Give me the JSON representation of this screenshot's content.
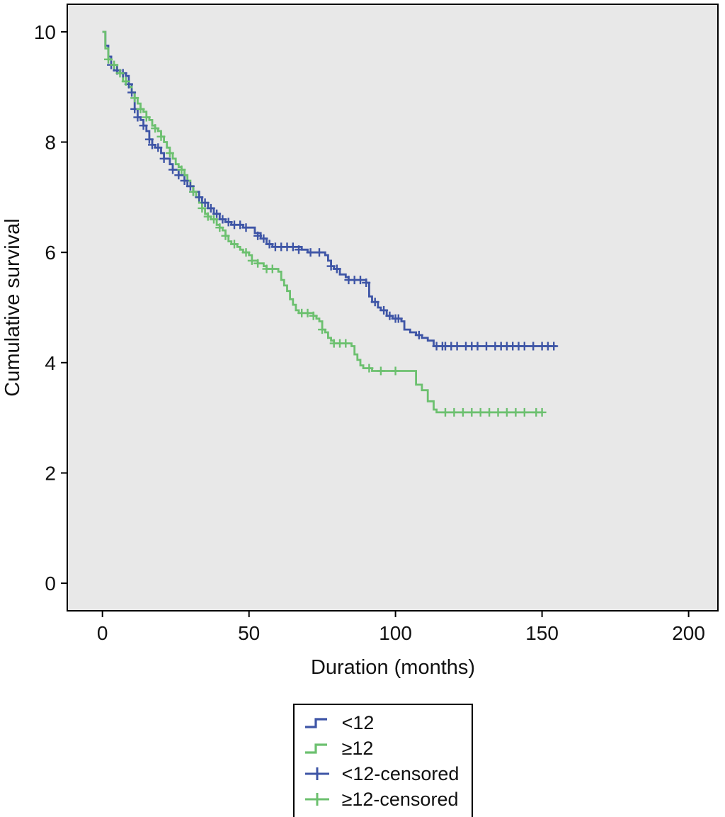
{
  "figure": {
    "background": "#ffffff",
    "plot_background": "#e8e8e8",
    "frame_color": "#000000",
    "text_color": "#111111"
  },
  "chart_data": {
    "type": "line",
    "subtype": "kaplan-meier-step-survival",
    "title": "",
    "xlabel": "Duration (months)",
    "ylabel": "Cumulative survival",
    "xlim": [
      -12,
      210
    ],
    "ylim": [
      -0.5,
      10.5
    ],
    "xticks": [
      0,
      50,
      100,
      150,
      200
    ],
    "yticks": [
      0,
      2,
      4,
      6,
      8,
      10
    ],
    "grid": false,
    "legend_position": "bottom-center",
    "series": [
      {
        "name": "<12",
        "color": "#3e55a6",
        "step": true,
        "points": [
          [
            0,
            10
          ],
          [
            1,
            9.75
          ],
          [
            2,
            9.55
          ],
          [
            3,
            9.4
          ],
          [
            4,
            9.3
          ],
          [
            6,
            9.25
          ],
          [
            8,
            9.2
          ],
          [
            9,
            9.05
          ],
          [
            10,
            8.9
          ],
          [
            11,
            8.6
          ],
          [
            12,
            8.45
          ],
          [
            13,
            8.4
          ],
          [
            14,
            8.3
          ],
          [
            15,
            8.2
          ],
          [
            16,
            8.05
          ],
          [
            17,
            7.95
          ],
          [
            18,
            7.9
          ],
          [
            20,
            7.8
          ],
          [
            21,
            7.7
          ],
          [
            23,
            7.6
          ],
          [
            24,
            7.5
          ],
          [
            26,
            7.4
          ],
          [
            28,
            7.3
          ],
          [
            29,
            7.2
          ],
          [
            31,
            7.1
          ],
          [
            33,
            7.0
          ],
          [
            34,
            6.9
          ],
          [
            36,
            6.8
          ],
          [
            38,
            6.7
          ],
          [
            40,
            6.6
          ],
          [
            42,
            6.55
          ],
          [
            44,
            6.5
          ],
          [
            48,
            6.45
          ],
          [
            52,
            6.35
          ],
          [
            54,
            6.25
          ],
          [
            56,
            6.15
          ],
          [
            58,
            6.1
          ],
          [
            66,
            6.1
          ],
          [
            68,
            6.05
          ],
          [
            70,
            6.0
          ],
          [
            76,
            5.95
          ],
          [
            77,
            5.85
          ],
          [
            78,
            5.75
          ],
          [
            79,
            5.7
          ],
          [
            81,
            5.6
          ],
          [
            83,
            5.55
          ],
          [
            84,
            5.5
          ],
          [
            90,
            5.45
          ],
          [
            91,
            5.2
          ],
          [
            92,
            5.1
          ],
          [
            94,
            5.0
          ],
          [
            95,
            4.95
          ],
          [
            97,
            4.85
          ],
          [
            99,
            4.8
          ],
          [
            102,
            4.75
          ],
          [
            103,
            4.6
          ],
          [
            105,
            4.55
          ],
          [
            107,
            4.5
          ],
          [
            109,
            4.45
          ],
          [
            111,
            4.4
          ],
          [
            113,
            4.3
          ],
          [
            155,
            4.3
          ]
        ],
        "censored": [
          [
            3,
            9.4
          ],
          [
            5,
            9.3
          ],
          [
            7,
            9.25
          ],
          [
            9,
            9.05
          ],
          [
            10,
            8.9
          ],
          [
            11,
            8.6
          ],
          [
            12,
            8.45
          ],
          [
            14,
            8.3
          ],
          [
            16,
            8.05
          ],
          [
            17,
            7.95
          ],
          [
            19,
            7.9
          ],
          [
            21,
            7.7
          ],
          [
            24,
            7.5
          ],
          [
            26,
            7.4
          ],
          [
            28,
            7.3
          ],
          [
            30,
            7.2
          ],
          [
            31,
            7.1
          ],
          [
            33,
            7.0
          ],
          [
            35,
            6.9
          ],
          [
            37,
            6.8
          ],
          [
            39,
            6.7
          ],
          [
            41,
            6.6
          ],
          [
            43,
            6.55
          ],
          [
            45,
            6.5
          ],
          [
            47,
            6.5
          ],
          [
            49,
            6.45
          ],
          [
            53,
            6.3
          ],
          [
            55,
            6.25
          ],
          [
            57,
            6.15
          ],
          [
            59,
            6.1
          ],
          [
            61,
            6.1
          ],
          [
            63,
            6.1
          ],
          [
            65,
            6.1
          ],
          [
            67,
            6.05
          ],
          [
            71,
            6.0
          ],
          [
            74,
            6.0
          ],
          [
            78,
            5.75
          ],
          [
            80,
            5.7
          ],
          [
            84,
            5.5
          ],
          [
            86,
            5.5
          ],
          [
            88,
            5.5
          ],
          [
            90,
            5.45
          ],
          [
            93,
            5.1
          ],
          [
            96,
            4.95
          ],
          [
            98,
            4.85
          ],
          [
            100,
            4.8
          ],
          [
            101,
            4.8
          ],
          [
            108,
            4.5
          ],
          [
            114,
            4.3
          ],
          [
            116,
            4.3
          ],
          [
            117,
            4.3
          ],
          [
            119,
            4.3
          ],
          [
            121,
            4.3
          ],
          [
            124,
            4.3
          ],
          [
            126,
            4.3
          ],
          [
            128,
            4.3
          ],
          [
            131,
            4.3
          ],
          [
            134,
            4.3
          ],
          [
            136,
            4.3
          ],
          [
            138,
            4.3
          ],
          [
            140,
            4.3
          ],
          [
            142,
            4.3
          ],
          [
            144,
            4.3
          ],
          [
            147,
            4.3
          ],
          [
            150,
            4.3
          ],
          [
            152,
            4.3
          ],
          [
            154,
            4.3
          ]
        ]
      },
      {
        "name": "≥12",
        "color": "#6cc06f",
        "step": true,
        "points": [
          [
            0,
            10
          ],
          [
            1,
            9.7
          ],
          [
            2,
            9.5
          ],
          [
            3,
            9.4
          ],
          [
            5,
            9.25
          ],
          [
            7,
            9.1
          ],
          [
            9,
            9.0
          ],
          [
            10,
            8.9
          ],
          [
            11,
            8.8
          ],
          [
            12,
            8.7
          ],
          [
            13,
            8.6
          ],
          [
            14,
            8.55
          ],
          [
            15,
            8.45
          ],
          [
            16,
            8.4
          ],
          [
            17,
            8.3
          ],
          [
            18,
            8.25
          ],
          [
            19,
            8.2
          ],
          [
            20,
            8.1
          ],
          [
            21,
            8.0
          ],
          [
            22,
            7.9
          ],
          [
            23,
            7.8
          ],
          [
            24,
            7.7
          ],
          [
            25,
            7.6
          ],
          [
            26,
            7.55
          ],
          [
            27,
            7.5
          ],
          [
            28,
            7.4
          ],
          [
            29,
            7.3
          ],
          [
            30,
            7.2
          ],
          [
            31,
            7.1
          ],
          [
            32,
            7.0
          ],
          [
            33,
            6.9
          ],
          [
            34,
            6.8
          ],
          [
            35,
            6.7
          ],
          [
            36,
            6.65
          ],
          [
            37,
            6.6
          ],
          [
            39,
            6.5
          ],
          [
            40,
            6.45
          ],
          [
            41,
            6.4
          ],
          [
            42,
            6.3
          ],
          [
            43,
            6.2
          ],
          [
            44,
            6.15
          ],
          [
            46,
            6.1
          ],
          [
            47,
            6.05
          ],
          [
            48,
            6.0
          ],
          [
            50,
            5.95
          ],
          [
            51,
            5.85
          ],
          [
            53,
            5.8
          ],
          [
            55,
            5.75
          ],
          [
            56,
            5.7
          ],
          [
            60,
            5.65
          ],
          [
            61,
            5.5
          ],
          [
            62,
            5.4
          ],
          [
            63,
            5.3
          ],
          [
            64,
            5.15
          ],
          [
            65,
            5.05
          ],
          [
            66,
            4.95
          ],
          [
            67,
            4.9
          ],
          [
            72,
            4.85
          ],
          [
            73,
            4.8
          ],
          [
            74,
            4.75
          ],
          [
            75,
            4.6
          ],
          [
            76,
            4.55
          ],
          [
            77,
            4.45
          ],
          [
            78,
            4.4
          ],
          [
            79,
            4.35
          ],
          [
            85,
            4.3
          ],
          [
            86,
            4.15
          ],
          [
            87,
            4.05
          ],
          [
            88,
            3.95
          ],
          [
            89,
            3.9
          ],
          [
            92,
            3.85
          ],
          [
            105,
            3.85
          ],
          [
            107,
            3.6
          ],
          [
            109,
            3.5
          ],
          [
            111,
            3.3
          ],
          [
            113,
            3.15
          ],
          [
            114,
            3.1
          ],
          [
            150,
            3.1
          ]
        ],
        "censored": [
          [
            2,
            9.5
          ],
          [
            4,
            9.4
          ],
          [
            6,
            9.25
          ],
          [
            8,
            9.1
          ],
          [
            11,
            8.8
          ],
          [
            13,
            8.6
          ],
          [
            15,
            8.45
          ],
          [
            18,
            8.25
          ],
          [
            20,
            8.1
          ],
          [
            23,
            7.8
          ],
          [
            27,
            7.5
          ],
          [
            31,
            7.1
          ],
          [
            34,
            6.8
          ],
          [
            36,
            6.65
          ],
          [
            38,
            6.6
          ],
          [
            40,
            6.45
          ],
          [
            42,
            6.3
          ],
          [
            45,
            6.15
          ],
          [
            49,
            6.0
          ],
          [
            51,
            5.85
          ],
          [
            53,
            5.8
          ],
          [
            56,
            5.7
          ],
          [
            58,
            5.7
          ],
          [
            68,
            4.9
          ],
          [
            70,
            4.9
          ],
          [
            72,
            4.85
          ],
          [
            75,
            4.6
          ],
          [
            79,
            4.35
          ],
          [
            81,
            4.35
          ],
          [
            83,
            4.35
          ],
          [
            91,
            3.9
          ],
          [
            95,
            3.85
          ],
          [
            100,
            3.85
          ],
          [
            117,
            3.1
          ],
          [
            120,
            3.1
          ],
          [
            123,
            3.1
          ],
          [
            126,
            3.1
          ],
          [
            129,
            3.1
          ],
          [
            132,
            3.1
          ],
          [
            135,
            3.1
          ],
          [
            138,
            3.1
          ],
          [
            141,
            3.1
          ],
          [
            144,
            3.1
          ],
          [
            148,
            3.1
          ],
          [
            150,
            3.1
          ]
        ]
      }
    ],
    "legend": [
      {
        "label": "<12",
        "marker": "step",
        "icon": "step-line-icon",
        "color": "#3e55a6"
      },
      {
        "label": "≥12",
        "marker": "step",
        "icon": "step-line-icon",
        "color": "#6cc06f"
      },
      {
        "label": "<12-censored",
        "marker": "plus",
        "icon": "censored-plus-icon",
        "color": "#3e55a6"
      },
      {
        "label": "≥12-censored",
        "marker": "plus",
        "icon": "censored-plus-icon",
        "color": "#6cc06f"
      }
    ]
  }
}
